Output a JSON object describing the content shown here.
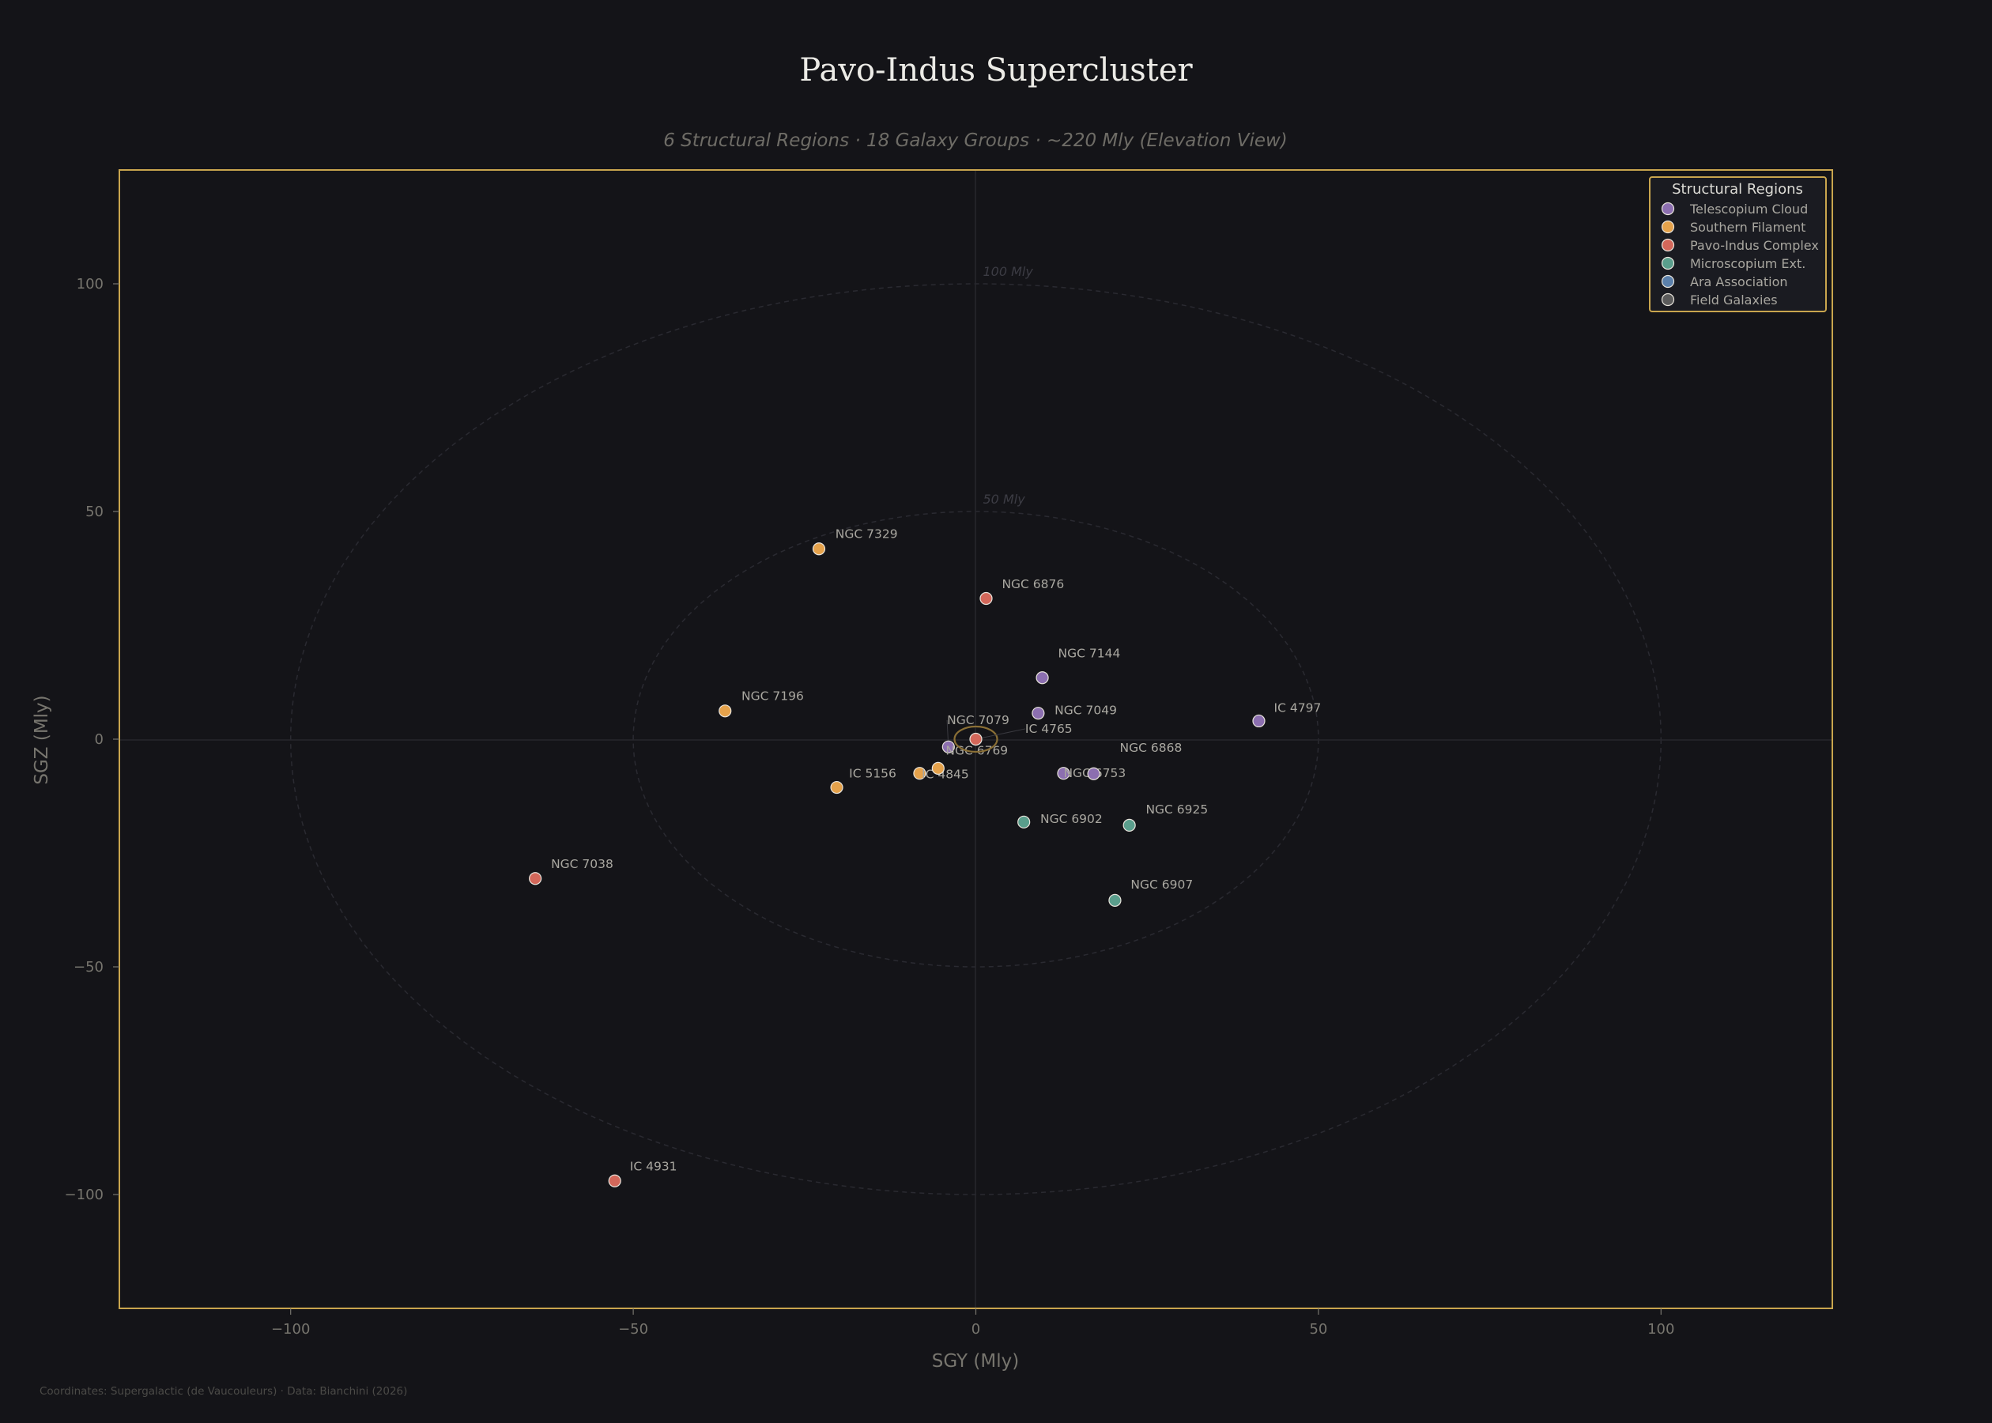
{
  "header": {
    "title": "Pavo-Indus Supercluster",
    "subtitle": "6 Structural Regions · 18 Galaxy Groups · ~220 Mly  (Elevation View)"
  },
  "footer": {
    "note": "Coordinates: Supergalactic (de Vaucouleurs)  ·  Data: Bianchini (2026)"
  },
  "colors": {
    "background": "#141418",
    "frame": "#c9a54e",
    "grid": "#26262c",
    "ring": "#2a2a31",
    "highlight_ring": "#8a6f35",
    "point_edge": "#e8e4dc"
  },
  "legend": {
    "title": "Structural Regions",
    "items": [
      {
        "label": "Telescopium Cloud",
        "color": "#8c6fb0"
      },
      {
        "label": "Southern Filament",
        "color": "#e5a24b"
      },
      {
        "label": "Pavo-Indus Complex",
        "color": "#d3675a"
      },
      {
        "label": "Microscopium Ext.",
        "color": "#5a9e8c"
      },
      {
        "label": "Ara Association",
        "color": "#5b80ab"
      },
      {
        "label": "Field Galaxies",
        "color": "#5b5b5b"
      }
    ]
  },
  "rings": [
    {
      "radius": 50,
      "label": "50 Mly"
    },
    {
      "radius": 100,
      "label": "100 Mly"
    }
  ],
  "chart_data": {
    "type": "scatter",
    "title": "Pavo-Indus Supercluster",
    "subtitle": "6 Structural Regions · 18 Galaxy Groups · ~220 Mly  (Elevation View)",
    "xlabel": "SGY (Mly)",
    "ylabel": "SGZ (Mly)",
    "xlim": [
      -125,
      125
    ],
    "ylim": [
      -125,
      125
    ],
    "xticks": [
      -100,
      -50,
      0,
      50,
      100
    ],
    "yticks": [
      -100,
      -50,
      0,
      50,
      100
    ],
    "grid": false,
    "legend_position": "upper right",
    "legend_title": "Structural Regions",
    "annotations": [
      "50 Mly",
      "100 Mly"
    ],
    "series": [
      {
        "name": "Telescopium Cloud",
        "color": "#8c6fb0",
        "points": [
          {
            "label": "NGC 7144",
            "x": 9.7,
            "y": 13.5,
            "lx": 12,
            "ly": 18
          },
          {
            "label": "NGC 7049",
            "x": 9.1,
            "y": 5.7,
            "lx": 11.5,
            "ly": 5.5
          },
          {
            "label": "IC 4797",
            "x": 41.3,
            "y": 4.0,
            "lx": 43.5,
            "ly": 6.0
          },
          {
            "label": "NGC 7079",
            "x": -4.0,
            "y": -1.7,
            "lx": -4.2,
            "ly": 3.3
          },
          {
            "label": "NGC 6753",
            "x": 12.8,
            "y": -7.5,
            "lx": 12.8,
            "ly": -8.3
          },
          {
            "label": "NGC 6868",
            "x": 17.2,
            "y": -7.6,
            "lx": 21.0,
            "ly": -2.8
          }
        ]
      },
      {
        "name": "Southern Filament",
        "color": "#e5a24b",
        "points": [
          {
            "label": "NGC 7329",
            "x": -22.9,
            "y": 41.8,
            "lx": -20.5,
            "ly": 44.2
          },
          {
            "label": "NGC 7196",
            "x": -36.6,
            "y": 6.2,
            "lx": -34.2,
            "ly": 8.6
          },
          {
            "label": "IC 5156",
            "x": -20.3,
            "y": -10.6,
            "lx": -18.5,
            "ly": -8.4
          },
          {
            "label": "IC 4845",
            "x": -8.2,
            "y": -7.5,
            "lx": -7.9,
            "ly": -8.6
          },
          {
            "label": "NGC 6769",
            "x": -5.5,
            "y": -6.4,
            "lx": -4.4,
            "ly": -3.4
          }
        ]
      },
      {
        "name": "Pavo-Indus Complex",
        "color": "#d3675a",
        "points": [
          {
            "label": "IC 4765",
            "x": 0.0,
            "y": 0.0,
            "lx": 7.2,
            "ly": 1.4,
            "highlight": true
          },
          {
            "label": "NGC 6876",
            "x": 1.5,
            "y": 30.9,
            "lx": 3.8,
            "ly": 33.2
          },
          {
            "label": "NGC 7038",
            "x": -64.3,
            "y": -30.6,
            "lx": -62.0,
            "ly": -28.3
          },
          {
            "label": "IC 4931",
            "x": -52.7,
            "y": -97.0,
            "lx": -50.5,
            "ly": -94.7
          }
        ]
      },
      {
        "name": "Microscopium Ext.",
        "color": "#5a9e8c",
        "points": [
          {
            "label": "NGC 6902",
            "x": 7.0,
            "y": -18.2,
            "lx": 9.4,
            "ly": -18.4
          },
          {
            "label": "NGC 6925",
            "x": 22.4,
            "y": -18.9,
            "lx": 24.8,
            "ly": -16.3
          },
          {
            "label": "NGC 6907",
            "x": 20.3,
            "y": -35.4,
            "lx": 22.6,
            "ly": -32.8
          }
        ]
      },
      {
        "name": "Ara Association",
        "color": "#5b80ab",
        "points": []
      },
      {
        "name": "Field Galaxies",
        "color": "#5b5b5b",
        "points": []
      }
    ]
  }
}
